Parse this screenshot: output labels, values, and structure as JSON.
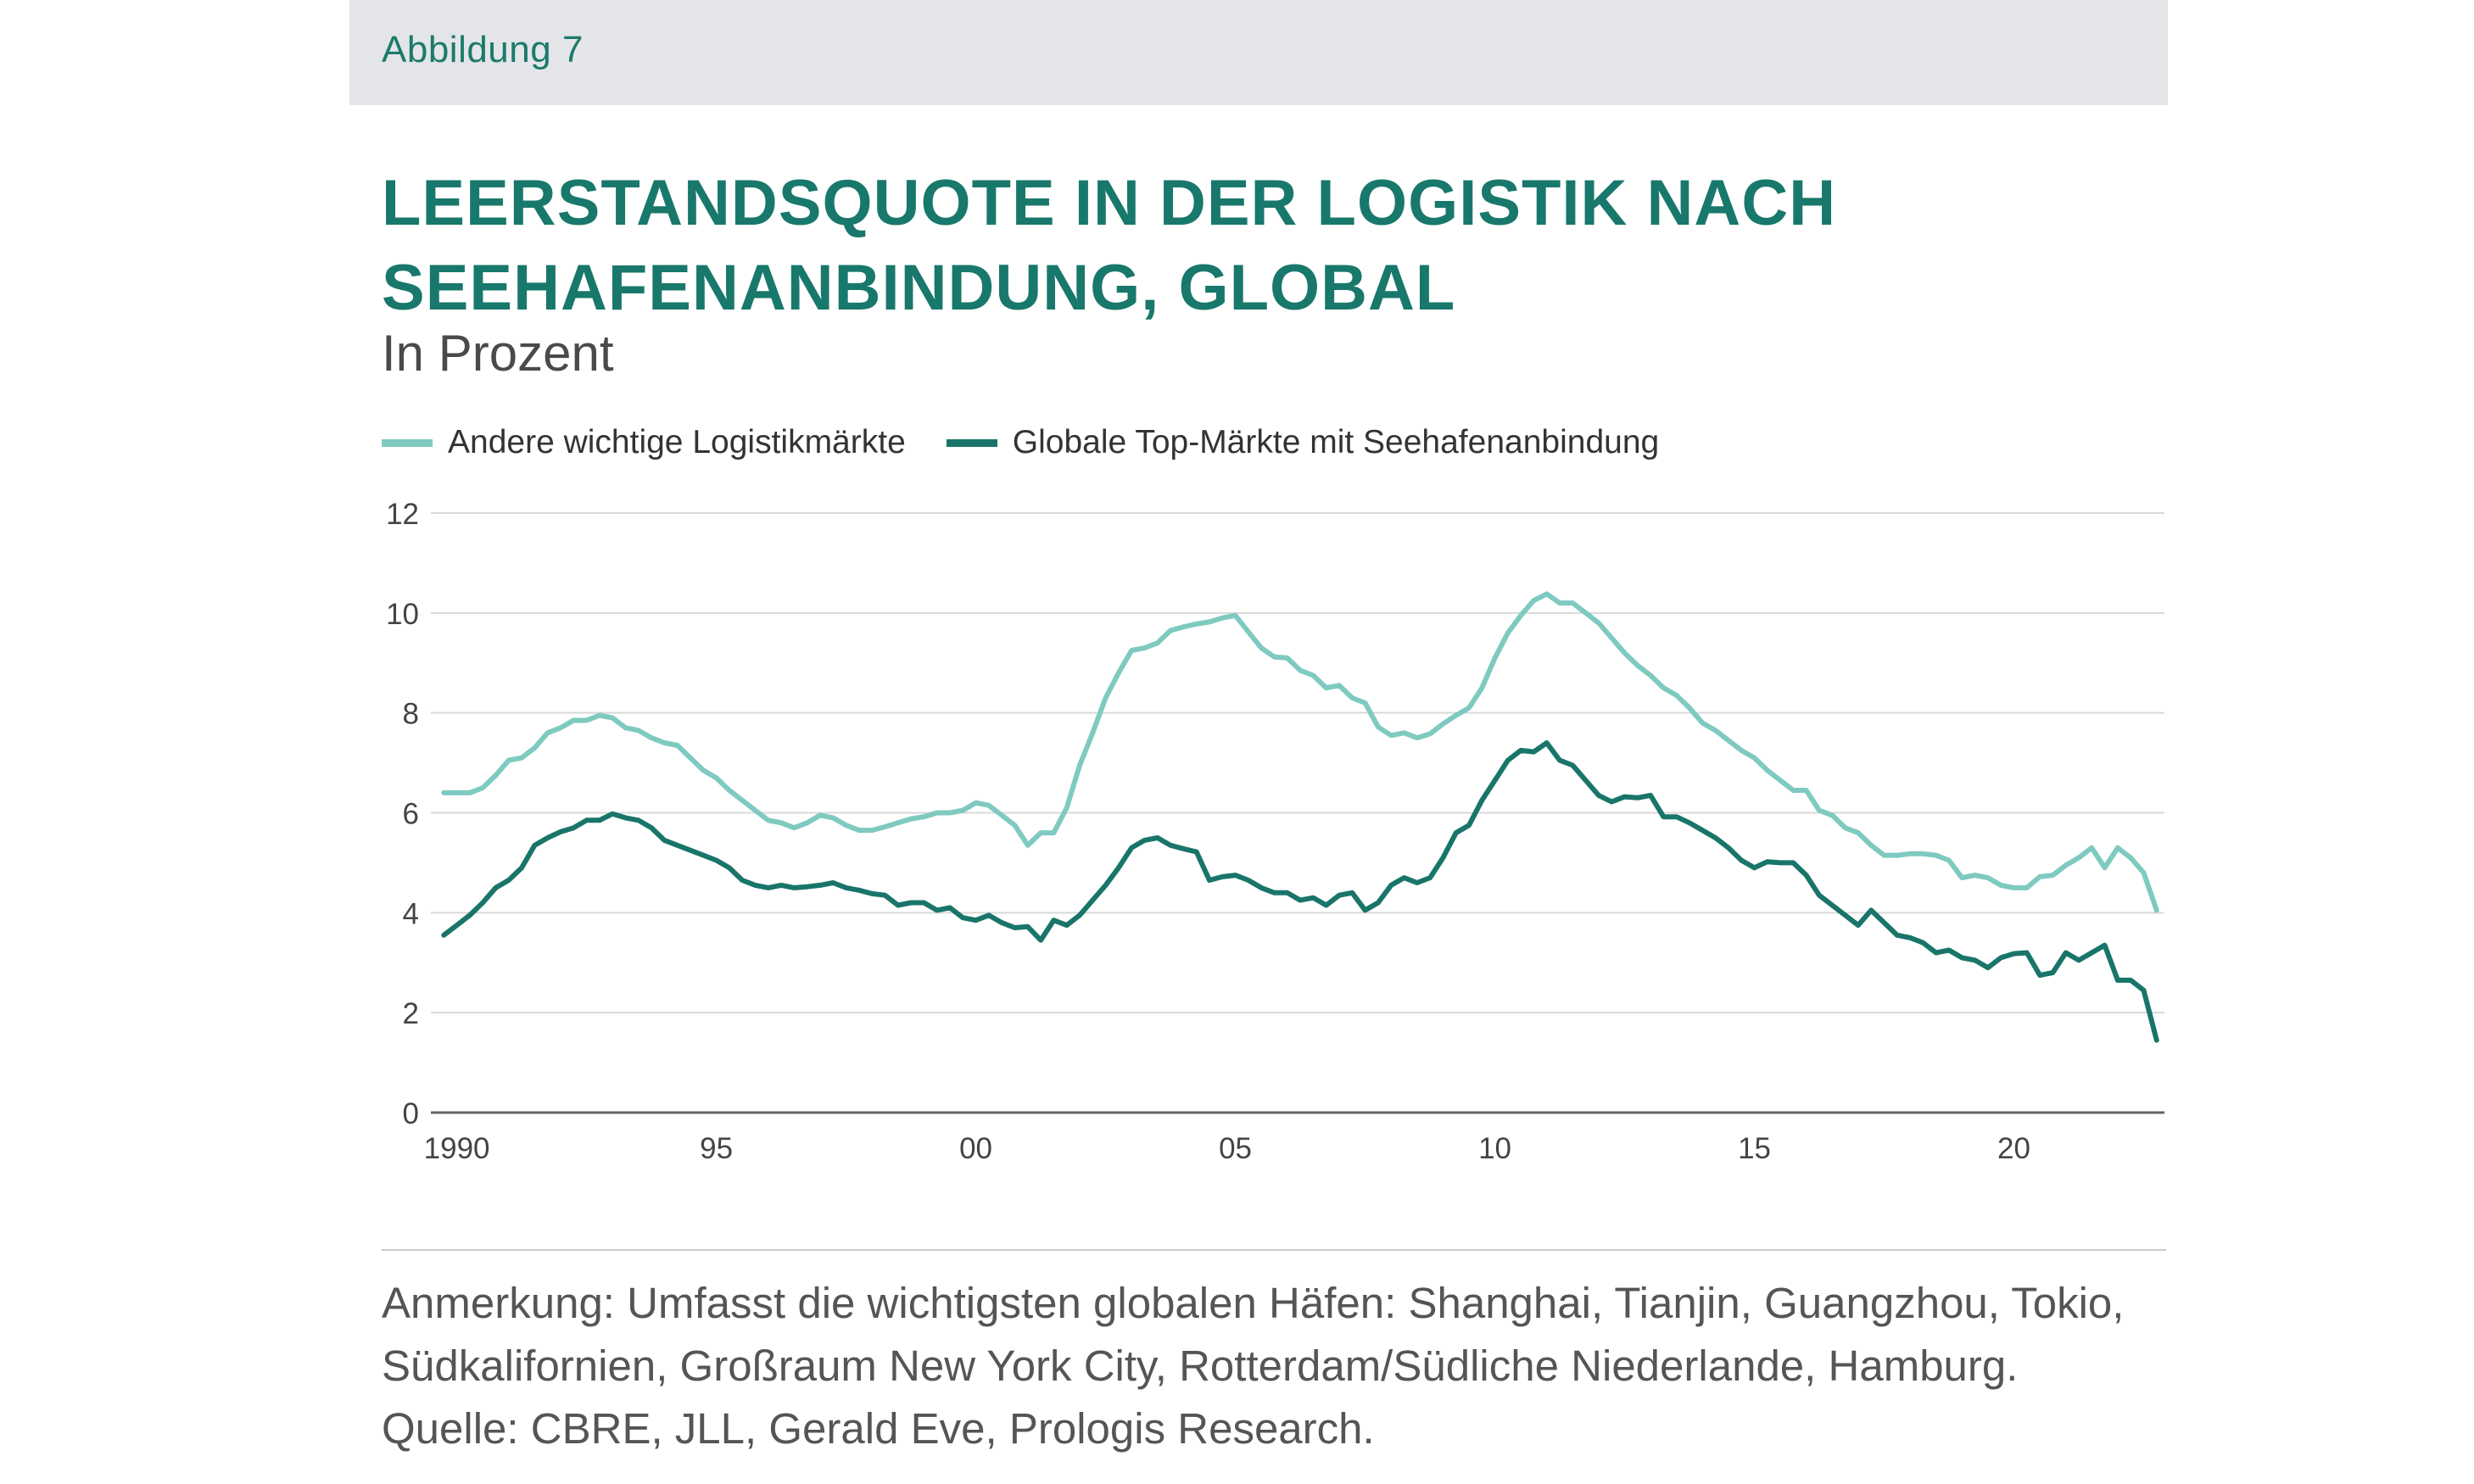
{
  "header": {
    "figure_label": "Abbildung 7"
  },
  "colors": {
    "header_bg": "#e3e5e8",
    "title": "#18786b",
    "series_light": "#7fcac0",
    "series_dark": "#19756a",
    "grid": "#d9d9d9",
    "axis": "#666666",
    "text": "#444444"
  },
  "chart_data": {
    "type": "line",
    "title": "LEERSTANDSQUOTE IN DER LOGISTIK NACH SEEHAFENANBINDUNG, GLOBAL",
    "title_lines": [
      "LEERSTANDSQUOTE IN DER LOGISTIK NACH",
      "SEEHAFENANBINDUNG, GLOBAL"
    ],
    "subtitle": "In Prozent",
    "xlabel": "",
    "ylabel": "",
    "x_start": 1989.75,
    "x_step": 0.25,
    "xlim": [
      1989.5,
      2022.9
    ],
    "ylim": [
      0,
      12
    ],
    "yticks": [
      0,
      2,
      4,
      6,
      8,
      10,
      12
    ],
    "ytick_labels": [
      "0",
      "2",
      "4",
      "6",
      "8",
      "10",
      "12"
    ],
    "xticks": [
      1990,
      1995,
      2000,
      2005,
      2010,
      2015,
      2020
    ],
    "xtick_labels": [
      "1990",
      "95",
      "00",
      "05",
      "10",
      "15",
      "20"
    ],
    "grid": true,
    "legend_position": "top-left",
    "series": [
      {
        "name": "Andere wichtige Logistikmärkte",
        "color": "#7fcac0",
        "values": [
          6.4,
          6.4,
          6.4,
          6.5,
          6.75,
          7.05,
          7.1,
          7.3,
          7.6,
          7.7,
          7.85,
          7.85,
          7.95,
          7.9,
          7.7,
          7.65,
          7.5,
          7.4,
          7.35,
          7.1,
          6.85,
          6.7,
          6.45,
          6.25,
          6.05,
          5.85,
          5.8,
          5.7,
          5.8,
          5.95,
          5.9,
          5.75,
          5.65,
          5.65,
          5.72,
          5.8,
          5.88,
          5.92,
          6.0,
          6.0,
          6.05,
          6.2,
          6.15,
          5.95,
          5.75,
          5.35,
          5.6,
          5.6,
          6.1,
          6.95,
          7.6,
          8.3,
          8.8,
          9.25,
          9.3,
          9.4,
          9.65,
          9.72,
          9.78,
          9.82,
          9.9,
          9.95,
          9.62,
          9.3,
          9.12,
          9.1,
          8.85,
          8.75,
          8.5,
          8.55,
          8.3,
          8.2,
          7.72,
          7.55,
          7.6,
          7.5,
          7.58,
          7.78,
          7.95,
          8.1,
          8.5,
          9.1,
          9.6,
          9.95,
          10.25,
          10.38,
          10.2,
          10.2,
          10.0,
          9.8,
          9.5,
          9.2,
          8.95,
          8.75,
          8.5,
          8.35,
          8.1,
          7.8,
          7.65,
          7.45,
          7.25,
          7.1,
          6.85,
          6.65,
          6.45,
          6.45,
          6.05,
          5.95,
          5.7,
          5.6,
          5.35,
          5.15,
          5.15,
          5.18,
          5.18,
          5.15,
          5.05,
          4.7,
          4.75,
          4.7,
          4.55,
          4.5,
          4.5,
          4.72,
          4.75,
          4.95,
          5.1,
          5.3,
          4.9,
          5.3,
          5.1,
          4.8,
          4.05
        ]
      },
      {
        "name": "Globale Top-Märkte mit Seehafenanbindung",
        "color": "#19756a",
        "values": [
          3.55,
          3.75,
          3.95,
          4.2,
          4.5,
          4.65,
          4.9,
          5.35,
          5.5,
          5.62,
          5.7,
          5.85,
          5.85,
          5.98,
          5.9,
          5.85,
          5.7,
          5.45,
          5.35,
          5.25,
          5.15,
          5.05,
          4.9,
          4.65,
          4.55,
          4.5,
          4.55,
          4.5,
          4.52,
          4.55,
          4.6,
          4.5,
          4.45,
          4.38,
          4.35,
          4.15,
          4.2,
          4.2,
          4.05,
          4.1,
          3.9,
          3.85,
          3.95,
          3.8,
          3.7,
          3.72,
          3.45,
          3.85,
          3.75,
          3.95,
          4.25,
          4.55,
          4.9,
          5.3,
          5.45,
          5.5,
          5.35,
          5.28,
          5.22,
          4.65,
          4.72,
          4.75,
          4.65,
          4.5,
          4.4,
          4.4,
          4.25,
          4.3,
          4.15,
          4.35,
          4.4,
          4.05,
          4.2,
          4.55,
          4.7,
          4.6,
          4.7,
          5.1,
          5.6,
          5.75,
          6.25,
          6.65,
          7.05,
          7.25,
          7.22,
          7.4,
          7.05,
          6.95,
          6.65,
          6.35,
          6.22,
          6.32,
          6.3,
          6.35,
          5.92,
          5.92,
          5.8,
          5.65,
          5.5,
          5.3,
          5.05,
          4.9,
          5.02,
          5.0,
          5.0,
          4.75,
          4.35,
          4.15,
          3.95,
          3.75,
          4.05,
          3.8,
          3.55,
          3.5,
          3.4,
          3.2,
          3.25,
          3.1,
          3.05,
          2.9,
          3.1,
          3.18,
          3.2,
          2.75,
          2.8,
          3.2,
          3.05,
          3.2,
          3.35,
          2.65,
          2.65,
          2.45,
          1.45
        ]
      }
    ]
  },
  "notes": {
    "lines": [
      "Anmerkung: Umfasst die wichtigsten globalen Häfen: Shanghai, Tianjin, Guangzhou, Tokio,",
      "Südkalifornien, Großraum New York City, Rotterdam/Südliche Niederlande, Hamburg.",
      "Quelle: CBRE, JLL, Gerald Eve, Prologis Research."
    ]
  }
}
